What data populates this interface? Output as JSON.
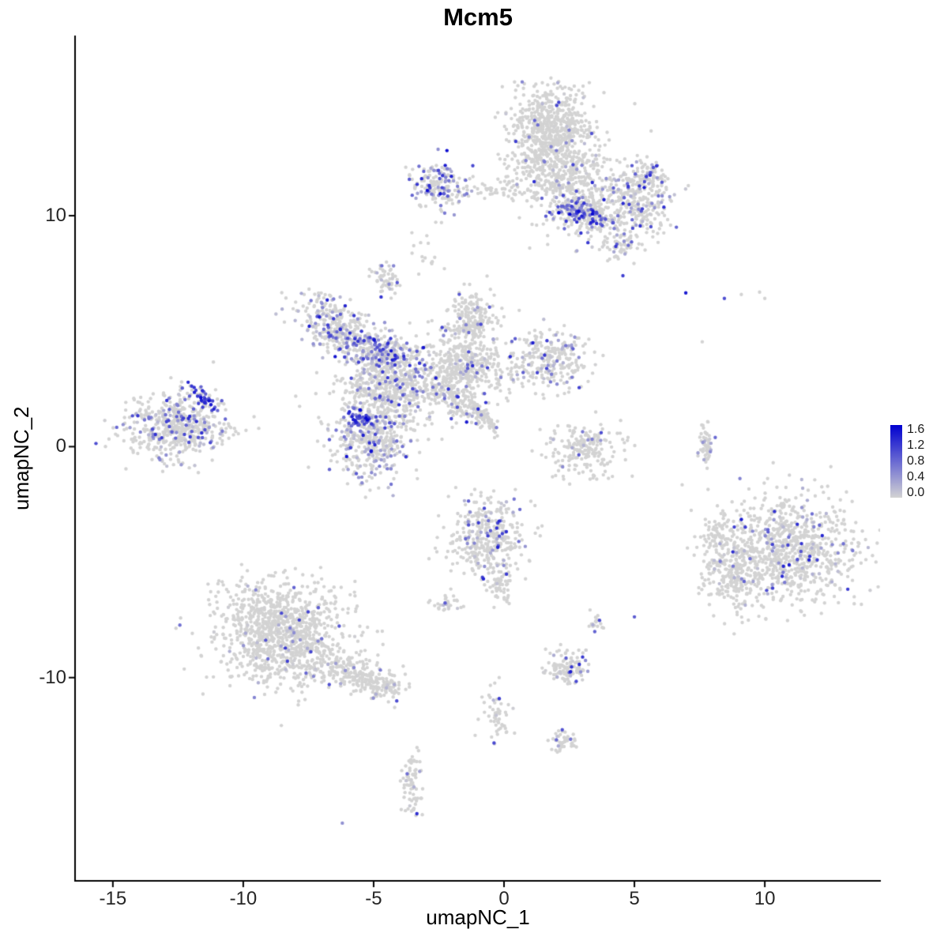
{
  "title": "Mcm5",
  "axes": {
    "x_label": "umapNC_1",
    "y_label": "umapNC_2"
  },
  "chart_data": {
    "type": "scatter",
    "title": "Mcm5",
    "xlabel": "umapNC_1",
    "ylabel": "umapNC_2",
    "xlim": [
      -16.45,
      14.45
    ],
    "ylim": [
      -18.8,
      17.8
    ],
    "x_ticks": [
      -15,
      -10,
      -5,
      0,
      5,
      10
    ],
    "y_ticks": [
      -10,
      0,
      10
    ],
    "legend_ticks": [
      1.6,
      1.2,
      0.8,
      0.4,
      0.0
    ],
    "color_low": "#d3d3d3",
    "color_high": "#0000d0",
    "point_radius": 2.2,
    "seed": 42,
    "grid": false,
    "legend_position": "right",
    "clusters": [
      {
        "name": "top-blob-upper",
        "cx": 1.8,
        "cy": 14.0,
        "sx": 0.75,
        "sy": 0.8,
        "n": 480,
        "frac": 0.04,
        "max": 1.2
      },
      {
        "name": "top-blob-mid",
        "cx": 2.0,
        "cy": 12.2,
        "sx": 0.9,
        "sy": 0.85,
        "n": 430,
        "frac": 0.06,
        "max": 1.3
      },
      {
        "name": "top-arm",
        "cx": 3.2,
        "cy": 10.4,
        "sx": 0.85,
        "sy": 0.75,
        "n": 300,
        "frac": 0.15,
        "max": 1.4
      },
      {
        "name": "top-hot-streak",
        "cx": 2.9,
        "cy": 10.2,
        "sx": 0.5,
        "sy": 0.25,
        "rot": -20,
        "n": 130,
        "frac": 0.5,
        "max": 1.6,
        "boost": 0.35
      },
      {
        "name": "top-right-arm",
        "cx": 5.1,
        "cy": 10.6,
        "sx": 0.7,
        "sy": 0.8,
        "n": 290,
        "frac": 0.18,
        "max": 1.4
      },
      {
        "name": "top-right-nub",
        "cx": 5.6,
        "cy": 11.7,
        "sx": 0.3,
        "sy": 0.25,
        "n": 55,
        "frac": 0.3,
        "max": 1.4
      },
      {
        "name": "top-arm-tail",
        "cx": 4.5,
        "cy": 8.7,
        "sx": 0.3,
        "sy": 0.4,
        "n": 60,
        "frac": 0.2,
        "max": 1.3
      },
      {
        "name": "cluster-upper-left",
        "cx": -2.5,
        "cy": 11.3,
        "sx": 0.55,
        "sy": 0.5,
        "n": 180,
        "frac": 0.35,
        "max": 1.6,
        "boost": 0.2
      },
      {
        "name": "bridge",
        "cx": 0.0,
        "cy": 11.1,
        "sx": 0.85,
        "sy": 0.2,
        "n": 55,
        "frac": 0.06,
        "max": 0.9
      },
      {
        "name": "nub-small",
        "cx": -4.5,
        "cy": 7.2,
        "sx": 0.25,
        "sy": 0.33,
        "n": 55,
        "frac": 0.2,
        "max": 1.2
      },
      {
        "name": "sparse-nw",
        "cx": -2.9,
        "cy": 8.4,
        "sx": 0.3,
        "sy": 0.5,
        "n": 16,
        "frac": 0.05,
        "max": 0.8
      },
      {
        "name": "x-left-arm",
        "cx": -6.6,
        "cy": 5.2,
        "sx": 0.8,
        "sy": 0.5,
        "rot": -40,
        "n": 290,
        "frac": 0.35,
        "max": 1.4,
        "boost": 0.1
      },
      {
        "name": "x-mid-arm",
        "cx": -4.6,
        "cy": 4.0,
        "sx": 0.9,
        "sy": 0.5,
        "rot": -35,
        "n": 380,
        "frac": 0.4,
        "max": 1.5,
        "boost": 0.1
      },
      {
        "name": "x-junction",
        "cx": -4.3,
        "cy": 2.4,
        "sx": 1.0,
        "sy": 0.7,
        "n": 470,
        "frac": 0.15,
        "max": 1.3
      },
      {
        "name": "x-right-lobe",
        "cx": -1.5,
        "cy": 3.6,
        "sx": 0.9,
        "sy": 0.75,
        "n": 420,
        "frac": 0.1,
        "max": 1.3
      },
      {
        "name": "x-top-lobe",
        "cx": -1.2,
        "cy": 5.6,
        "sx": 0.45,
        "sy": 0.6,
        "n": 190,
        "frac": 0.12,
        "max": 1.2
      },
      {
        "name": "x-right-edge",
        "cx": 1.7,
        "cy": 3.8,
        "sx": 0.75,
        "sy": 0.65,
        "n": 260,
        "frac": 0.2,
        "max": 1.4
      },
      {
        "name": "x-bottom-lobe",
        "cx": -5.1,
        "cy": 0.3,
        "sx": 0.8,
        "sy": 0.85,
        "n": 430,
        "frac": 0.3,
        "max": 1.5,
        "boost": 0.1
      },
      {
        "name": "x-bottom-hot",
        "cx": -5.45,
        "cy": 1.2,
        "sx": 0.25,
        "sy": 0.2,
        "n": 50,
        "frac": 0.75,
        "max": 1.6,
        "boost": 0.5
      },
      {
        "name": "x-diag-streak",
        "cx": -1.9,
        "cy": 2.0,
        "sx": 0.8,
        "sy": 0.3,
        "rot": -35,
        "n": 140,
        "frac": 0.15,
        "max": 1.4
      },
      {
        "name": "x-thin-tail",
        "cx": -0.85,
        "cy": 1.4,
        "sx": 0.5,
        "sy": 0.13,
        "rot": -55,
        "n": 70,
        "frac": 0.08,
        "max": 1.0
      },
      {
        "name": "left-main",
        "cx": -12.6,
        "cy": 0.9,
        "sx": 1.0,
        "sy": 0.7,
        "n": 560,
        "frac": 0.25,
        "max": 1.3
      },
      {
        "name": "left-hot",
        "cx": -11.5,
        "cy": 2.0,
        "sx": 0.4,
        "sy": 0.18,
        "rot": -35,
        "n": 45,
        "frac": 0.8,
        "max": 1.6,
        "boost": 0.5
      },
      {
        "name": "crescent-mid",
        "cx": 3.1,
        "cy": -0.1,
        "sx": 0.7,
        "sy": 0.6,
        "n": 200,
        "frac": 0.1,
        "max": 1.2
      },
      {
        "name": "sliver-right",
        "cx": 7.75,
        "cy": 0.05,
        "sx": 0.12,
        "sy": 0.45,
        "n": 55,
        "frac": 0.15,
        "max": 1.1
      },
      {
        "name": "right-main",
        "cx": 10.8,
        "cy": -4.4,
        "sx": 1.35,
        "sy": 1.15,
        "n": 880,
        "frac": 0.12,
        "max": 1.4
      },
      {
        "name": "right-sw",
        "cx": 8.8,
        "cy": -5.6,
        "sx": 0.6,
        "sy": 0.8,
        "n": 200,
        "frac": 0.05,
        "max": 1.0
      },
      {
        "name": "right-nub",
        "cx": 8.1,
        "cy": -3.8,
        "sx": 0.25,
        "sy": 0.45,
        "n": 55,
        "frac": 0.1,
        "max": 1.0
      },
      {
        "name": "bottomleft-main",
        "cx": -8.6,
        "cy": -8.0,
        "sx": 1.25,
        "sy": 1.1,
        "n": 1050,
        "frac": 0.05,
        "max": 1.2
      },
      {
        "name": "bottomleft-tail",
        "cx": -5.9,
        "cy": -9.7,
        "sx": 1.0,
        "sy": 0.4,
        "rot": -20,
        "n": 260,
        "frac": 0.05,
        "max": 1.0
      },
      {
        "name": "bottomleft-tip",
        "cx": -4.6,
        "cy": -10.4,
        "sx": 0.35,
        "sy": 0.3,
        "n": 60,
        "frac": 0.08,
        "max": 1.0
      },
      {
        "name": "center-bottom",
        "cx": -0.6,
        "cy": -3.9,
        "sx": 0.7,
        "sy": 0.85,
        "n": 370,
        "frac": 0.18,
        "max": 1.4
      },
      {
        "name": "center-bottom-tail",
        "cx": -0.1,
        "cy": -6.0,
        "sx": 0.25,
        "sy": 0.45,
        "n": 55,
        "frac": 0.05,
        "max": 0.8
      },
      {
        "name": "center-bottom-west",
        "cx": -2.2,
        "cy": -6.8,
        "sx": 0.35,
        "sy": 0.2,
        "n": 28,
        "frac": 0.15,
        "max": 1.2
      },
      {
        "name": "small-south",
        "cx": 2.4,
        "cy": -9.5,
        "sx": 0.4,
        "sy": 0.38,
        "n": 115,
        "frac": 0.2,
        "max": 1.4
      },
      {
        "name": "pair-south",
        "cx": 3.45,
        "cy": -7.7,
        "sx": 0.2,
        "sy": 0.2,
        "n": 18,
        "frac": 0.25,
        "max": 1.2
      },
      {
        "name": "trail-south",
        "cx": -0.35,
        "cy": -11.7,
        "sx": 0.28,
        "sy": 0.6,
        "n": 55,
        "frac": 0.1,
        "max": 1.2
      },
      {
        "name": "tiny-south",
        "cx": 2.3,
        "cy": -12.75,
        "sx": 0.3,
        "sy": 0.22,
        "n": 45,
        "frac": 0.12,
        "max": 1.0
      },
      {
        "name": "column-south",
        "cx": -3.55,
        "cy": -14.6,
        "sx": 0.2,
        "sy": 0.7,
        "n": 75,
        "frac": 0.12,
        "max": 1.3
      }
    ],
    "singles": [
      {
        "x": 6.97,
        "y": 6.66,
        "v": 1.4
      },
      {
        "x": 8.45,
        "y": 6.42,
        "v": 1.0
      },
      {
        "x": 9.1,
        "y": 6.59,
        "v": 0
      },
      {
        "x": 9.8,
        "y": 6.69,
        "v": 0
      },
      {
        "x": 10.0,
        "y": 6.42,
        "v": 0
      },
      {
        "x": 7.6,
        "y": 4.54,
        "v": 0
      },
      {
        "x": 8.1,
        "y": 0.4,
        "v": 0.8
      },
      {
        "x": 5.0,
        "y": -7.37,
        "v": 0.9
      },
      {
        "x": -6.2,
        "y": -16.3,
        "v": 0.5
      }
    ]
  }
}
